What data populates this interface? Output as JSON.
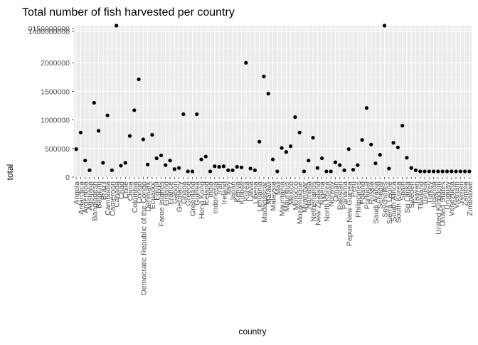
{
  "chart_data": {
    "type": "scatter",
    "title": "Total number of fish harvested per country",
    "xlabel": "country",
    "ylabel": "total",
    "ylim": [
      0,
      2650000
    ],
    "y_ticks": [
      0,
      500000,
      1000000,
      1500000,
      2000000
    ],
    "y_tick_labels": [
      "0",
      "500000",
      "1000000",
      "1500000",
      "2000000"
    ],
    "y_overlapping_tick_labels": [
      "0150000000",
      "1400000000"
    ],
    "grid": true,
    "legend": "none",
    "categories": [
      "Angola",
      "Antarctica",
      "Argentina",
      "Australia",
      "Bangladesh",
      "Belgium",
      "Brazil",
      "Cambodia",
      "Cameroon",
      "Canada",
      "Chad",
      "Chile",
      "China",
      "Colombia",
      "Congo",
      "Democratic Republic of the Congo",
      "Denmark",
      "Ecuador",
      "Egypt",
      "Faroe Islands",
      "Finland",
      "France",
      "Gabon",
      "Germany",
      "Ghana",
      "Greece",
      "Greenland",
      "Guinea",
      "Hong Kong",
      "Iceland",
      "India",
      "Indonesia",
      "Iran",
      "Ireland",
      "Italy",
      "Japan",
      "Kenya",
      "Kiribati",
      "Korea",
      "Latvia",
      "Liberia",
      "Lithuania",
      "Madagascar",
      "Malawi",
      "Malaysia",
      "Mali",
      "Mauritania",
      "Mauritius",
      "Mexico",
      "Morocco",
      "Mozambique",
      "Myanmar",
      "Namibia",
      "Netherlands",
      "New Zealand",
      "Nigeria",
      "North Korea",
      "Norway",
      "Oman",
      "Pakistan",
      "Panama",
      "Papua New Guinea",
      "Peru",
      "Philippines",
      "Poland",
      "Portugal",
      "Russia",
      "Saudi Arabia",
      "Senegal",
      "Seychelles",
      "Sierra Leone",
      "South Africa",
      "South Korea",
      "Spain",
      "Sri Lanka",
      "Sweden",
      "Taiwan",
      "Thailand",
      "Tunisia",
      "Turkey",
      "Uganda",
      "United Kingdom",
      "United States",
      "Uruguay",
      "Venezuela",
      "Vietnam",
      "Yemen",
      "Zambia",
      "Zimbabwe"
    ],
    "values": [
      490000,
      780000,
      290000,
      120000,
      1300000,
      810000,
      250000,
      1080000,
      120000,
      2650000,
      200000,
      250000,
      720000,
      1170000,
      1710000,
      660000,
      220000,
      740000,
      330000,
      380000,
      210000,
      290000,
      140000,
      160000,
      1100000,
      100000,
      100000,
      1100000,
      310000,
      360000,
      100000,
      190000,
      180000,
      190000,
      120000,
      120000,
      180000,
      170000,
      2000000,
      150000,
      120000,
      620000,
      1760000,
      1460000,
      310000,
      100000,
      510000,
      440000,
      540000,
      1050000,
      780000,
      100000,
      290000,
      690000,
      160000,
      330000,
      100000,
      100000,
      260000,
      210000,
      120000,
      490000,
      130000,
      210000,
      650000,
      1210000,
      570000,
      240000,
      390000,
      2650000,
      150000,
      600000,
      520000,
      900000,
      340000,
      160000,
      120000,
      100000,
      100000,
      100000,
      100000,
      100000,
      100000,
      100000,
      100000,
      100000,
      100000,
      100000,
      100000
    ]
  }
}
